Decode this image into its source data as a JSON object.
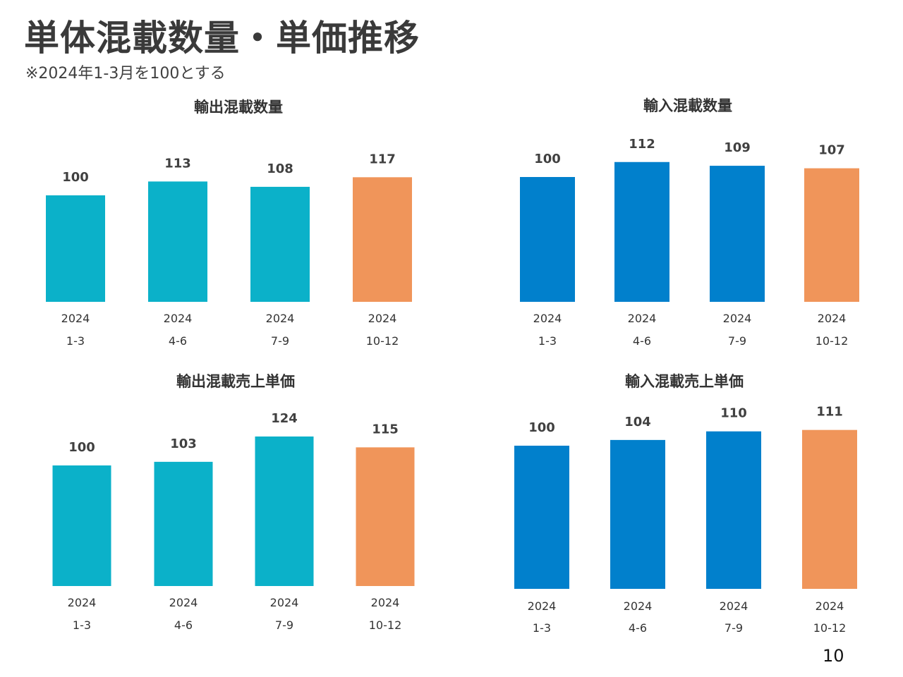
{
  "page": {
    "title": "単体混載数量・単価推移",
    "note": "※2024年1-3月を100とする",
    "page_number": "10"
  },
  "colors": {
    "export": "#0bb1c9",
    "import": "#0180cc",
    "highlight": "#f0955a"
  },
  "chart_data": [
    {
      "type": "bar",
      "title": "輸出混載数量",
      "categories": [
        [
          "2024",
          "1-3"
        ],
        [
          "2024",
          "4-6"
        ],
        [
          "2024",
          "7-9"
        ],
        [
          "2024",
          "10-12"
        ]
      ],
      "values": [
        100,
        113,
        108,
        117
      ],
      "data_labels": [
        "100",
        "113",
        "108",
        "117"
      ],
      "bar_colors": [
        "#0bb1c9",
        "#0bb1c9",
        "#0bb1c9",
        "#f0955a"
      ],
      "xlabel": "",
      "ylabel": "",
      "grid": false,
      "legend": "none"
    },
    {
      "type": "bar",
      "title": "輸入混載数量",
      "categories": [
        [
          "2024",
          "1-3"
        ],
        [
          "2024",
          "4-6"
        ],
        [
          "2024",
          "7-9"
        ],
        [
          "2024",
          "10-12"
        ]
      ],
      "values": [
        100,
        112,
        109,
        107
      ],
      "data_labels": [
        "100",
        "112",
        "109",
        "107"
      ],
      "bar_colors": [
        "#0180cc",
        "#0180cc",
        "#0180cc",
        "#f0955a"
      ],
      "xlabel": "",
      "ylabel": "",
      "grid": false,
      "legend": "none"
    },
    {
      "type": "bar",
      "title": "輸出混載売上単価",
      "categories": [
        [
          "2024",
          "1-3"
        ],
        [
          "2024",
          "4-6"
        ],
        [
          "2024",
          "7-9"
        ],
        [
          "2024",
          "10-12"
        ]
      ],
      "values": [
        100,
        103,
        124,
        115
      ],
      "data_labels": [
        "100",
        "103",
        "124",
        "115"
      ],
      "bar_colors": [
        "#0bb1c9",
        "#0bb1c9",
        "#0bb1c9",
        "#f0955a"
      ],
      "xlabel": "",
      "ylabel": "",
      "grid": false,
      "legend": "none"
    },
    {
      "type": "bar",
      "title": "輸入混載売上単価",
      "categories": [
        [
          "2024",
          "1-3"
        ],
        [
          "2024",
          "4-6"
        ],
        [
          "2024",
          "7-9"
        ],
        [
          "2024",
          "10-12"
        ]
      ],
      "values": [
        100,
        104,
        110,
        111
      ],
      "data_labels": [
        "100",
        "104",
        "110",
        "111"
      ],
      "bar_colors": [
        "#0180cc",
        "#0180cc",
        "#0180cc",
        "#f0955a"
      ],
      "xlabel": "",
      "ylabel": "",
      "grid": false,
      "legend": "none"
    }
  ]
}
